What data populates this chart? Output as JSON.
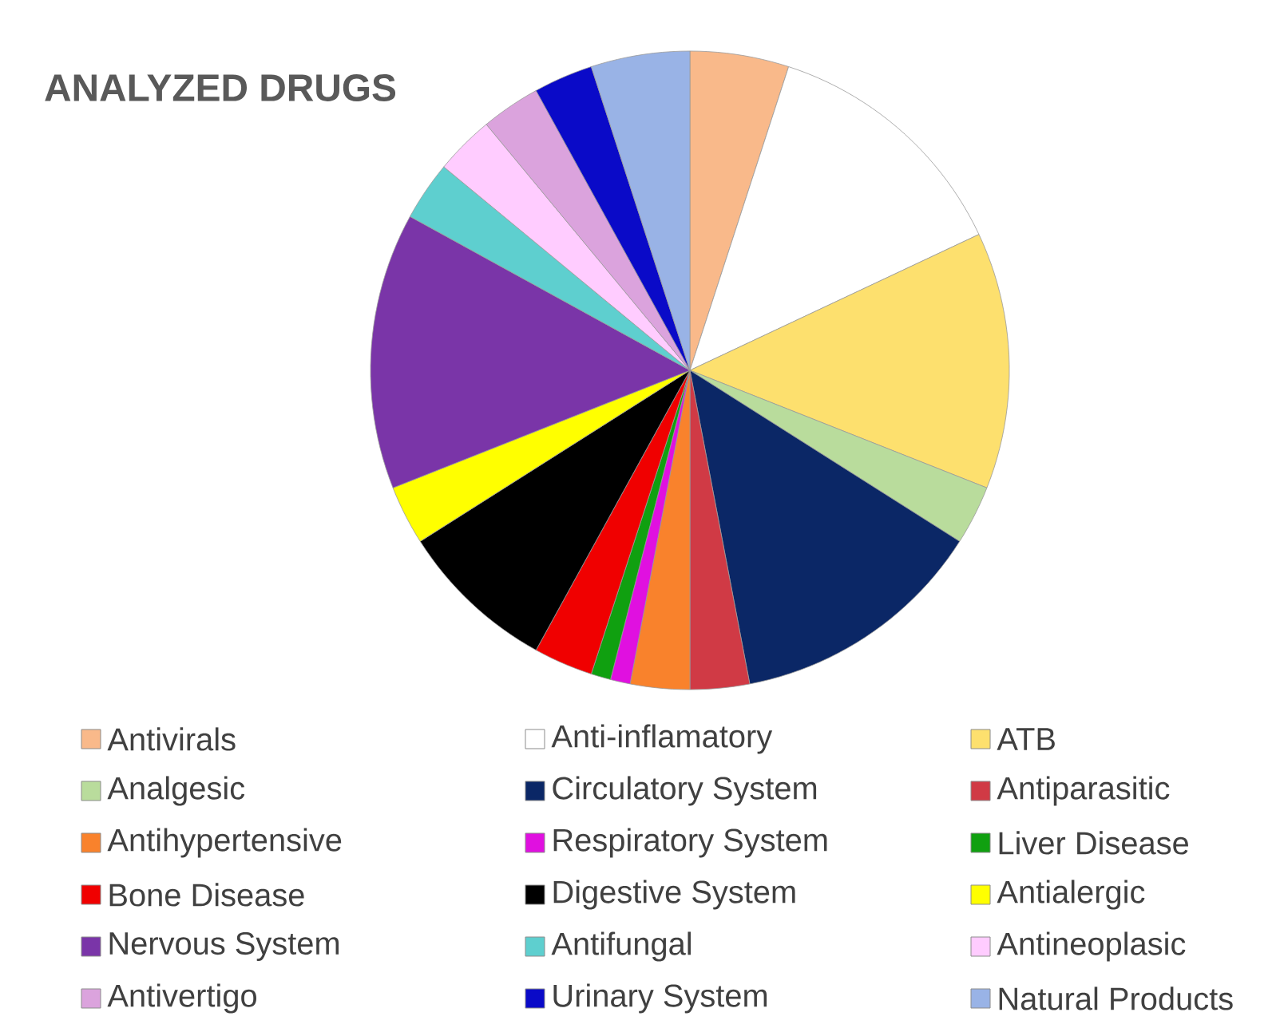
{
  "chart_data": {
    "type": "pie",
    "title": "ANALYZED DRUGS",
    "legend": "bottom",
    "categories": [
      "Antivirals",
      "Anti-inflamatory",
      "ATB",
      "Analgesic",
      "Circulatory System",
      "Antiparasitic",
      "Antihypertensive",
      "Respiratory System",
      "Liver Disease",
      "Bone Disease",
      "Digestive System",
      "Antialergic",
      "Nervous System",
      "Antifungal",
      "Antineoplasic",
      "Antivertigo",
      "Urinary System",
      "Natural Products"
    ],
    "values": [
      5,
      13,
      13,
      3,
      13,
      3,
      3,
      1,
      1,
      3,
      8,
      3,
      14,
      3,
      3,
      3,
      3,
      5
    ],
    "colors": [
      "#f9b98a",
      "#ffffff",
      "#fde06e",
      "#b9dc9c",
      "#0b2766",
      "#d03a45",
      "#f9822c",
      "#e010e0",
      "#10a010",
      "#f00000",
      "#000000",
      "#ffff00",
      "#7a35a8",
      "#5ecfcf",
      "#ffccff",
      "#dba3dd",
      "#0a0ac8",
      "#99b3e6"
    ]
  }
}
